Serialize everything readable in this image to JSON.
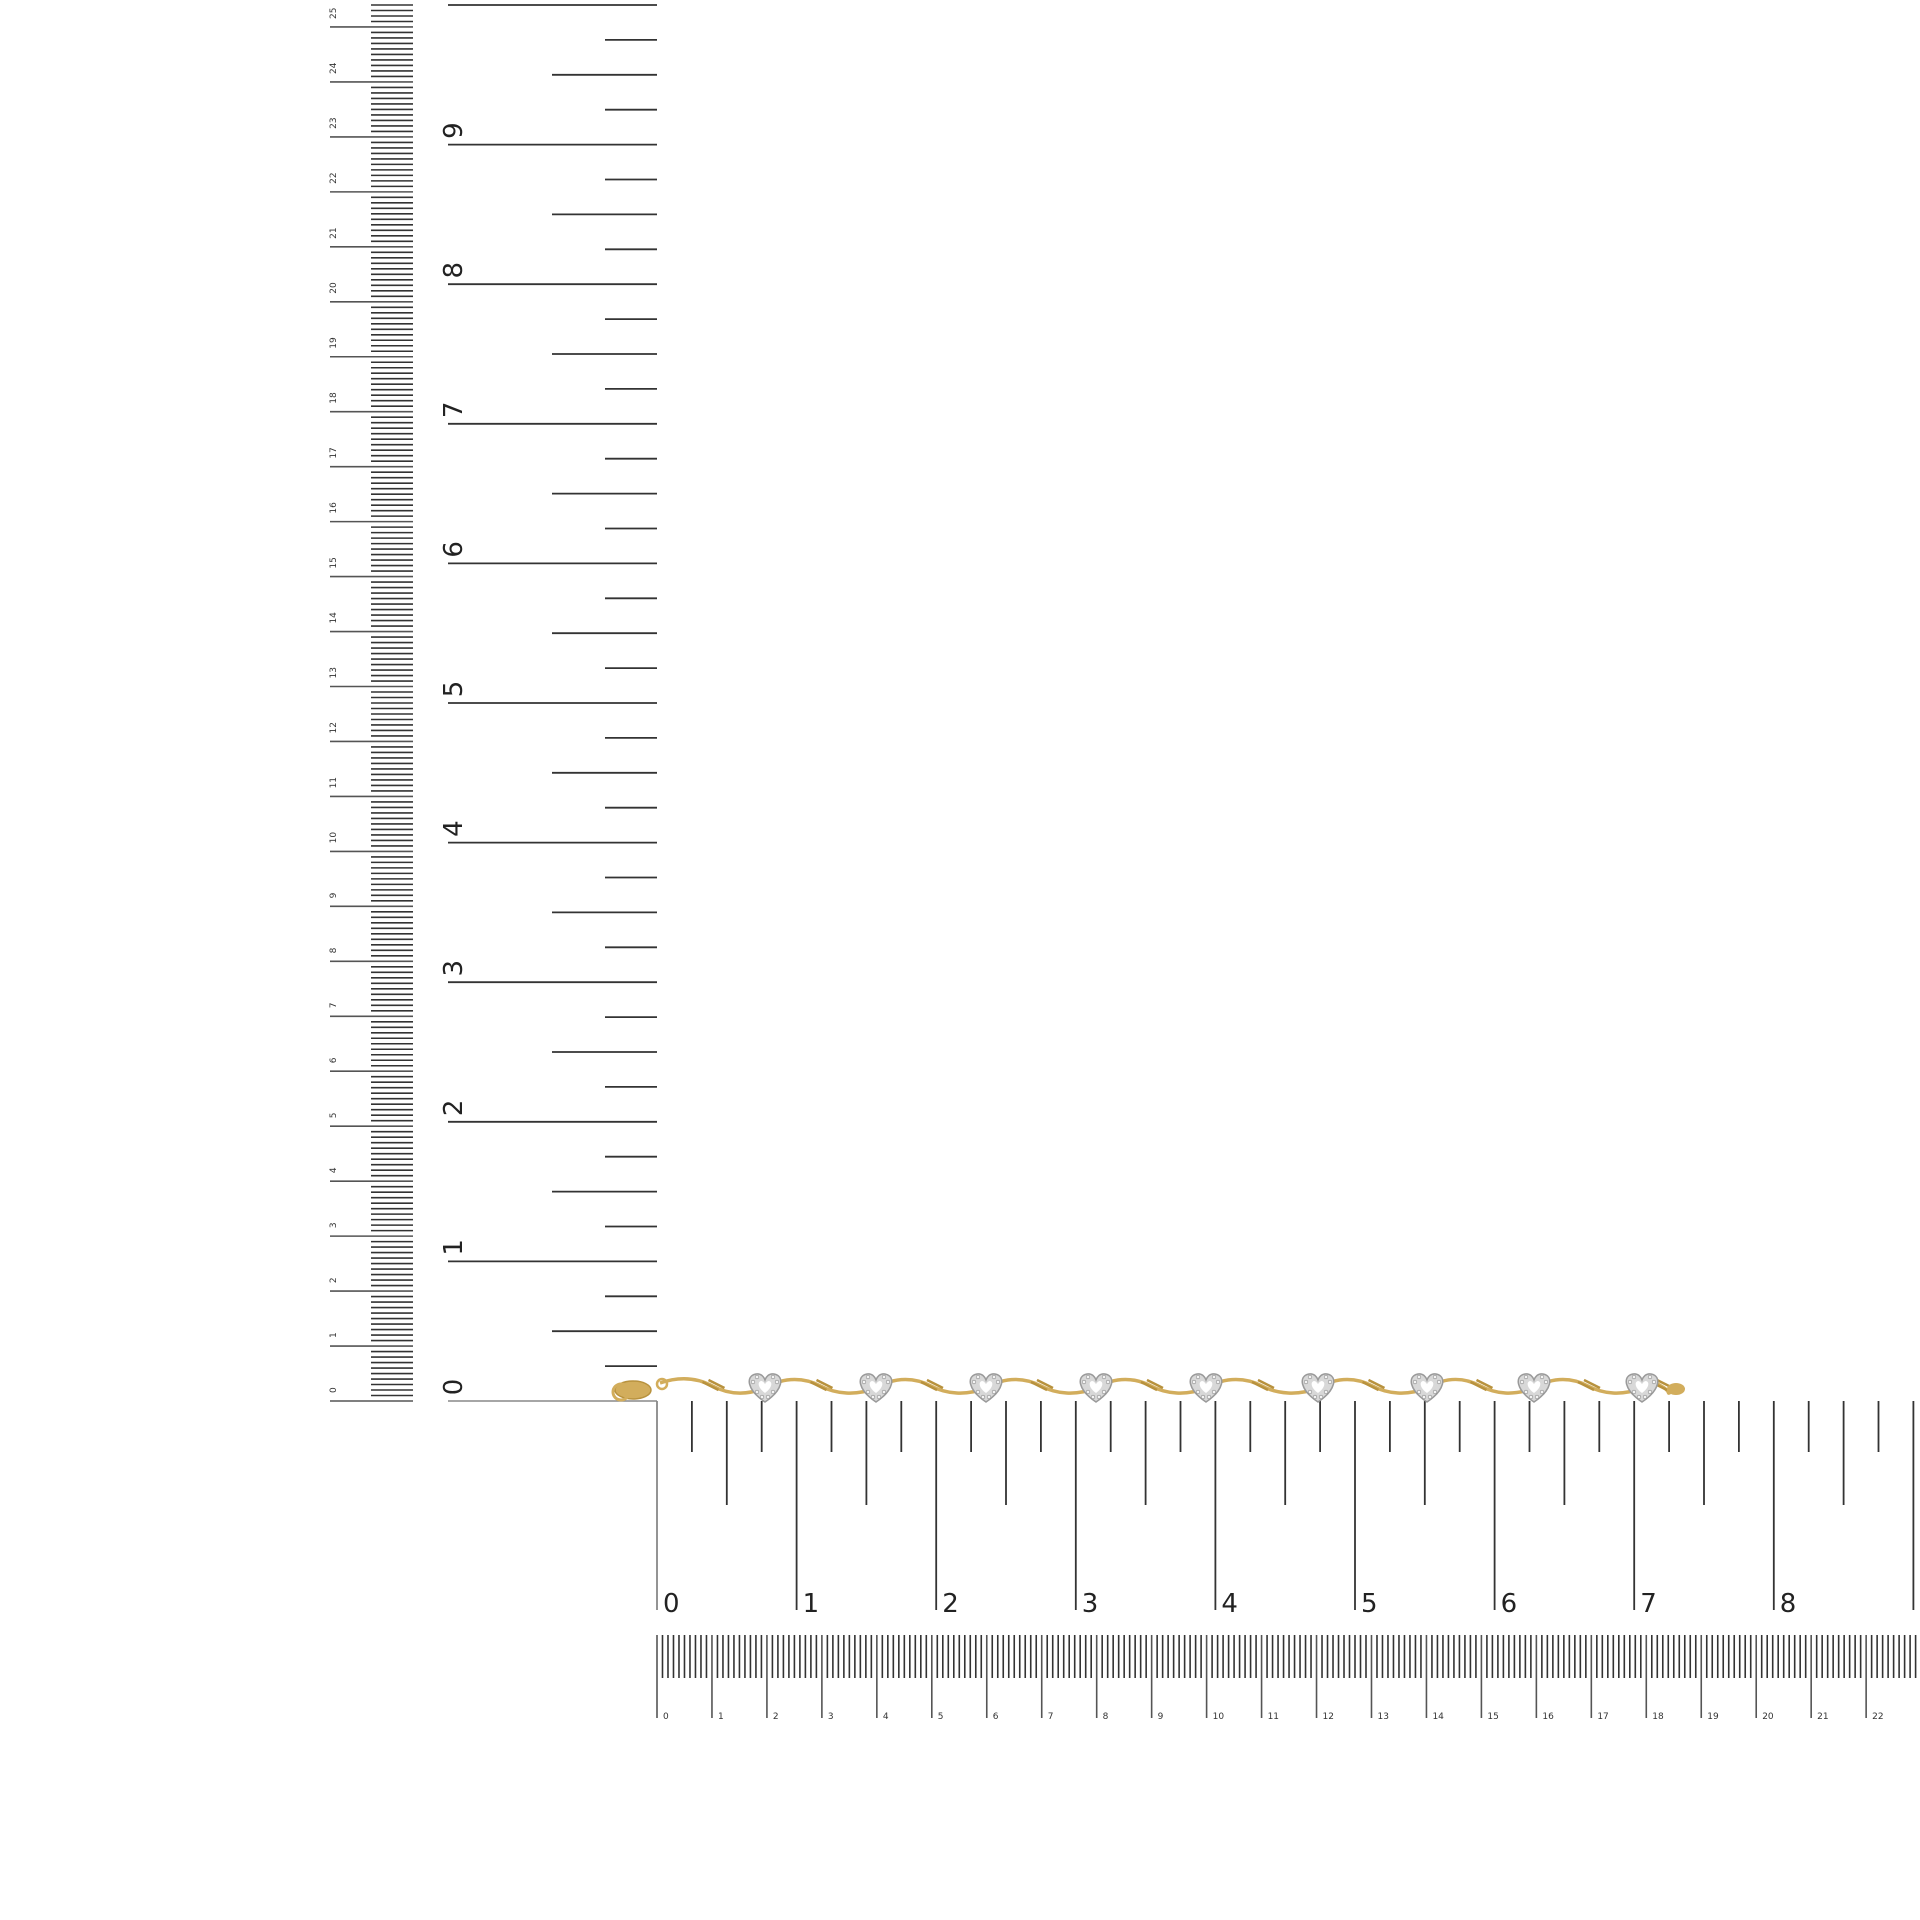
{
  "vertical_ruler": {
    "inch_labels": [
      "0",
      "1",
      "2",
      "3",
      "4",
      "5",
      "6",
      "7",
      "8",
      "9"
    ],
    "cm_labels": [
      "0",
      "1",
      "2",
      "3",
      "4",
      "5",
      "6",
      "7",
      "8",
      "9",
      "10",
      "11",
      "12",
      "13",
      "14",
      "15",
      "16",
      "17",
      "18",
      "19",
      "20",
      "21",
      "22",
      "23",
      "24",
      "25"
    ]
  },
  "horizontal_ruler": {
    "inch_labels": [
      "0",
      "1",
      "2",
      "3",
      "4",
      "5",
      "6",
      "7",
      "8"
    ],
    "cm_labels": [
      "0",
      "1",
      "2",
      "3",
      "4",
      "5",
      "6",
      "7",
      "8",
      "9",
      "10",
      "11",
      "12",
      "13",
      "14",
      "15",
      "16",
      "17",
      "18",
      "19",
      "20",
      "21",
      "22"
    ]
  },
  "product": {
    "type": "heart station bracelet",
    "heart_count": 9,
    "colors": {
      "gold": "#d2ad5c",
      "silver": "#d8d8d8",
      "ruler": "#333333"
    }
  }
}
